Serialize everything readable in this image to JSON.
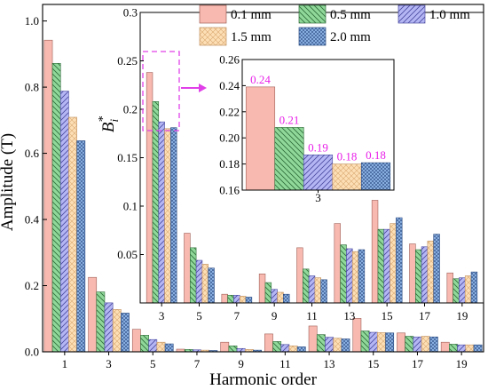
{
  "chart_data": [
    {
      "type": "bar",
      "xlabel": "Harmonic order",
      "ylabel": "Amplitude (T)",
      "categories": [
        "1",
        "3",
        "5",
        "7",
        "9",
        "11",
        "13",
        "15",
        "17",
        "19"
      ],
      "ylim": [
        0,
        1.05
      ],
      "yticks": [
        "0.0",
        "0.2",
        "0.4",
        "0.6",
        "0.8",
        "1.0"
      ],
      "series": [
        {
          "name": "0.1 mm",
          "values": [
            0.942,
            0.225,
            0.068,
            0.008,
            0.029,
            0.054,
            0.078,
            0.101,
            0.057,
            0.029
          ]
        },
        {
          "name": "0.5 mm",
          "values": [
            0.872,
            0.181,
            0.05,
            0.007,
            0.018,
            0.031,
            0.052,
            0.063,
            0.047,
            0.023
          ]
        },
        {
          "name": "1.0 mm",
          "values": [
            0.788,
            0.148,
            0.037,
            0.006,
            0.01,
            0.022,
            0.044,
            0.059,
            0.045,
            0.021
          ]
        },
        {
          "name": "1.5 mm",
          "values": [
            0.709,
            0.128,
            0.029,
            0.005,
            0.007,
            0.018,
            0.041,
            0.058,
            0.047,
            0.021
          ]
        },
        {
          "name": "2.0 mm",
          "values": [
            0.638,
            0.117,
            0.024,
            0.004,
            0.005,
            0.015,
            0.039,
            0.057,
            0.045,
            0.021
          ]
        }
      ]
    },
    {
      "type": "bar",
      "ylabel": "B",
      "ylabel_sub": "i",
      "ylabel_sup": "*",
      "categories": [
        "3",
        "5",
        "7",
        "9",
        "11",
        "13",
        "15",
        "17",
        "19"
      ],
      "ylim": [
        0,
        0.3
      ],
      "yticks": [
        "0.05",
        "0.1",
        "0.15",
        "0.2",
        "0.25",
        "0.3"
      ],
      "series": [
        {
          "name": "0.1 mm",
          "values": [
            0.238,
            0.072,
            0.009,
            0.03,
            0.057,
            0.082,
            0.106,
            0.061,
            0.031
          ]
        },
        {
          "name": "0.5 mm",
          "values": [
            0.208,
            0.057,
            0.008,
            0.021,
            0.035,
            0.06,
            0.076,
            0.055,
            0.025
          ]
        },
        {
          "name": "1.0 mm",
          "values": [
            0.187,
            0.044,
            0.008,
            0.014,
            0.028,
            0.056,
            0.076,
            0.058,
            0.026
          ]
        },
        {
          "name": "1.5 mm",
          "values": [
            0.18,
            0.04,
            0.007,
            0.011,
            0.026,
            0.053,
            0.082,
            0.064,
            0.028
          ]
        },
        {
          "name": "2.0 mm",
          "values": [
            0.181,
            0.036,
            0.006,
            0.009,
            0.024,
            0.055,
            0.088,
            0.071,
            0.032
          ]
        }
      ]
    },
    {
      "type": "bar",
      "categories": [
        "3"
      ],
      "ylim": [
        0.16,
        0.26
      ],
      "yticks": [
        "0.16",
        "0.18",
        "0.20",
        "0.22",
        "0.24",
        "0.26"
      ],
      "value_labels": [
        "0.24",
        "0.21",
        "0.19",
        "0.18",
        "0.18"
      ],
      "series": [
        {
          "name": "0.1 mm",
          "values": [
            0.239
          ]
        },
        {
          "name": "0.5 mm",
          "values": [
            0.208
          ]
        },
        {
          "name": "1.0 mm",
          "values": [
            0.187
          ]
        },
        {
          "name": "1.5 mm",
          "values": [
            0.18
          ]
        },
        {
          "name": "2.0 mm",
          "values": [
            0.181
          ]
        }
      ]
    }
  ],
  "styles": [
    {
      "fill": "#f7b9b0",
      "stroke": "#a06058",
      "hatch": "none",
      "hatch_color": "#a06058"
    },
    {
      "fill": "#8fd89a",
      "stroke": "#2f6b38",
      "hatch": "diag-back",
      "hatch_color": "#2f6b38"
    },
    {
      "fill": "#b4b6f4",
      "stroke": "#4a4aa0",
      "hatch": "diag-fwd",
      "hatch_color": "#4a4aa0"
    },
    {
      "fill": "#fddfb6",
      "stroke": "#c09060",
      "hatch": "cross",
      "hatch_color": "#d9a870"
    },
    {
      "fill": "#8fb6e8",
      "stroke": "#2a4a80",
      "hatch": "cross-dense",
      "hatch_color": "#2a4a80"
    }
  ],
  "label_color": "#e81ee8",
  "zoom_box_color": "#e040e8"
}
